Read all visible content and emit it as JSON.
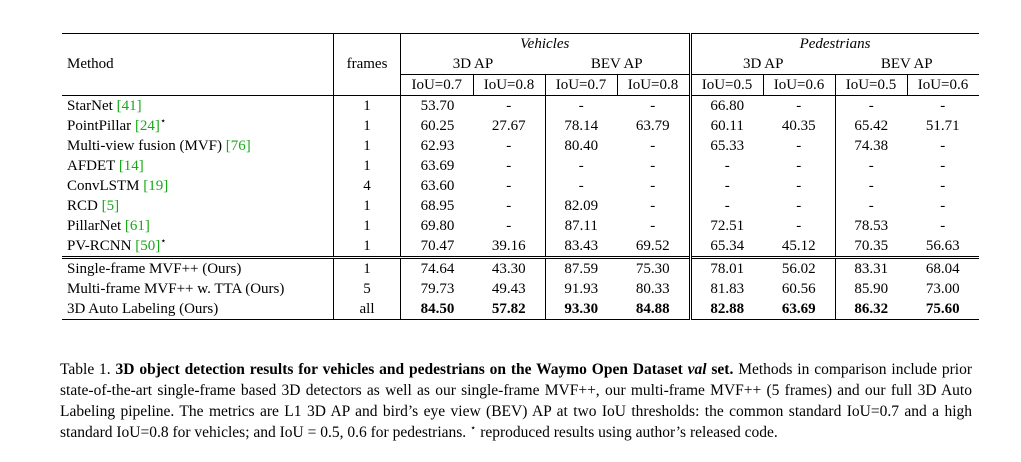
{
  "table": {
    "header": {
      "method": "Method",
      "frames": "frames",
      "vehicles": "Vehicles",
      "pedestrians": "Pedestrians",
      "ap_3d": "3D AP",
      "ap_bev": "BEV AP",
      "iou_v07": "IoU=0.7",
      "iou_v08": "IoU=0.8",
      "iou_p05": "IoU=0.5",
      "iou_p06": "IoU=0.6"
    },
    "baselines": [
      {
        "name": "StarNet",
        "ref": "[41]",
        "star": "",
        "frames": "1",
        "vals": [
          "53.70",
          "-",
          "-",
          "-",
          "66.80",
          "-",
          "-",
          "-"
        ]
      },
      {
        "name": "PointPillar",
        "ref": "[24]",
        "star": "⋆",
        "frames": "1",
        "vals": [
          "60.25",
          "27.67",
          "78.14",
          "63.79",
          "60.11",
          "40.35",
          "65.42",
          "51.71"
        ]
      },
      {
        "name": "Multi-view fusion (MVF)",
        "ref": "[76]",
        "star": "",
        "frames": "1",
        "vals": [
          "62.93",
          "-",
          "80.40",
          "-",
          "65.33",
          "-",
          "74.38",
          "-"
        ]
      },
      {
        "name": "AFDET",
        "ref": "[14]",
        "star": "",
        "frames": "1",
        "vals": [
          "63.69",
          "-",
          "-",
          "-",
          "-",
          "-",
          "-",
          "-"
        ]
      },
      {
        "name": "ConvLSTM",
        "ref": "[19]",
        "star": "",
        "frames": "4",
        "vals": [
          "63.60",
          "-",
          "-",
          "-",
          "-",
          "-",
          "-",
          "-"
        ]
      },
      {
        "name": "RCD",
        "ref": "[5]",
        "star": "",
        "frames": "1",
        "vals": [
          "68.95",
          "-",
          "82.09",
          "-",
          "-",
          "-",
          "-",
          "-"
        ]
      },
      {
        "name": "PillarNet",
        "ref": "[61]",
        "star": "",
        "frames": "1",
        "vals": [
          "69.80",
          "-",
          "87.11",
          "-",
          "72.51",
          "-",
          "78.53",
          "-"
        ]
      },
      {
        "name": "PV-RCNN",
        "ref": "[50]",
        "star": "⋆",
        "frames": "1",
        "vals": [
          "70.47",
          "39.16",
          "83.43",
          "69.52",
          "65.34",
          "45.12",
          "70.35",
          "56.63"
        ]
      }
    ],
    "ours": [
      {
        "name": "Single-frame MVF++ (Ours)",
        "frames": "1",
        "vals": [
          "74.64",
          "43.30",
          "87.59",
          "75.30",
          "78.01",
          "56.02",
          "83.31",
          "68.04"
        ]
      },
      {
        "name": "Multi-frame MVF++ w. TTA (Ours)",
        "frames": "5",
        "vals": [
          "79.73",
          "49.43",
          "91.93",
          "80.33",
          "81.83",
          "60.56",
          "85.90",
          "73.00"
        ]
      }
    ],
    "final": {
      "name": "3D Auto Labeling (Ours)",
      "frames": "all",
      "vals": [
        "84.50",
        "57.82",
        "93.30",
        "84.88",
        "82.88",
        "63.69",
        "86.32",
        "75.60"
      ]
    }
  },
  "caption": {
    "label": "Table 1.",
    "title_pre": "3D object detection results for vehicles and pedestrians on the Waymo Open Dataset",
    "title_ital": "val",
    "title_post": "set.",
    "body": "Methods in comparison include prior state-of-the-art single-frame based 3D detectors as well as our single-frame MVF++, our multi-frame MVF++ (5 frames) and our full 3D Auto Labeling pipeline. The metrics are L1 3D AP and bird’s eye view (BEV) AP at two IoU thresholds: the common standard IoU=0.7 and a high standard IoU=0.8 for vehicles; and IoU = 0.5, 0.6 for pedestrians.",
    "star": "⋆",
    "note": "reproduced results using author’s released code."
  }
}
